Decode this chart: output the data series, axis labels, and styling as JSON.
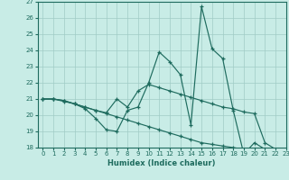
{
  "xlabel": "Humidex (Indice chaleur)",
  "xlim": [
    -0.5,
    23
  ],
  "ylim": [
    18,
    27
  ],
  "xticks": [
    0,
    1,
    2,
    3,
    4,
    5,
    6,
    7,
    8,
    9,
    10,
    11,
    12,
    13,
    14,
    15,
    16,
    17,
    18,
    19,
    20,
    21,
    22,
    23
  ],
  "yticks": [
    18,
    19,
    20,
    21,
    22,
    23,
    24,
    25,
    26,
    27
  ],
  "bg_color": "#c8ece6",
  "line_color": "#1e6b5e",
  "grid_color": "#a0ccc6",
  "line1_x": [
    0,
    1,
    2,
    3,
    4,
    5,
    6,
    7,
    8,
    9,
    10,
    11,
    12,
    13,
    14,
    15,
    16,
    17,
    18,
    19,
    20,
    21,
    22,
    23
  ],
  "line1_y": [
    21.0,
    21.0,
    20.9,
    20.7,
    20.4,
    19.8,
    19.1,
    19.0,
    20.3,
    20.5,
    22.0,
    23.9,
    23.3,
    22.5,
    19.4,
    26.7,
    24.1,
    23.5,
    20.3,
    17.6,
    18.3,
    17.9,
    17.8,
    17.6
  ],
  "line2_x": [
    0,
    1,
    2,
    3,
    4,
    5,
    6,
    7,
    8,
    9,
    10,
    11,
    12,
    13,
    14,
    15,
    16,
    17,
    18,
    19,
    20,
    21,
    22,
    23
  ],
  "line2_y": [
    21.0,
    21.0,
    20.85,
    20.7,
    20.5,
    20.3,
    20.1,
    19.9,
    19.7,
    19.5,
    19.3,
    19.1,
    18.9,
    18.7,
    18.5,
    18.3,
    18.2,
    18.1,
    18.0,
    17.9,
    17.85,
    17.8,
    17.75,
    17.7
  ],
  "line3_x": [
    0,
    1,
    2,
    3,
    4,
    5,
    6,
    7,
    8,
    9,
    10,
    11,
    12,
    13,
    14,
    15,
    16,
    17,
    18,
    19,
    20,
    21,
    22,
    23
  ],
  "line3_y": [
    21.0,
    21.0,
    20.9,
    20.7,
    20.5,
    20.3,
    20.15,
    21.0,
    20.5,
    21.5,
    21.9,
    21.7,
    21.5,
    21.3,
    21.1,
    20.9,
    20.7,
    20.5,
    20.4,
    20.2,
    20.1,
    18.3,
    17.9,
    17.7
  ]
}
